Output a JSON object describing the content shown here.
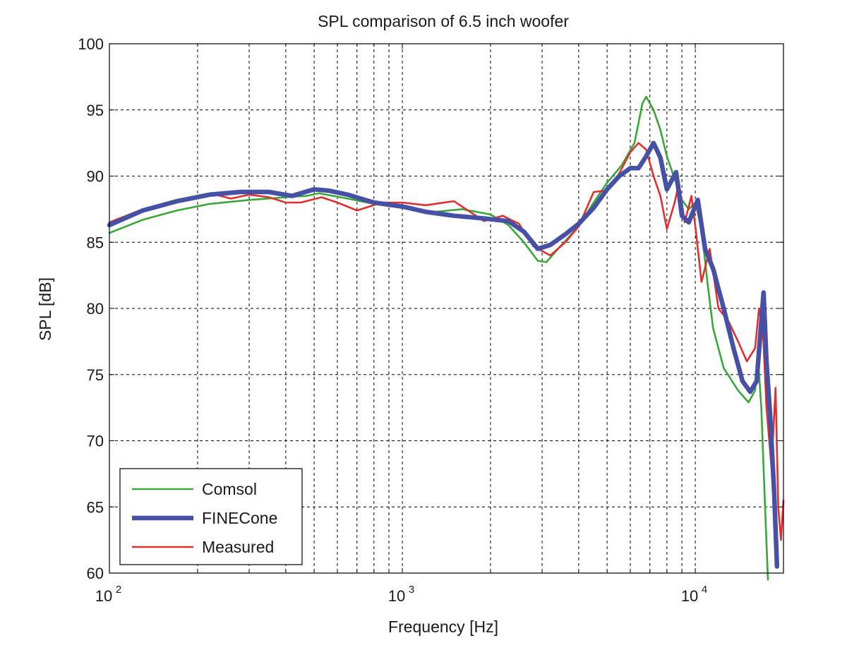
{
  "chart_data": {
    "type": "line",
    "title": "SPL comparison of 6.5 inch woofer",
    "xlabel": "Frequency [Hz]",
    "ylabel": "SPL [dB]",
    "xscale": "log",
    "xlim": [
      100,
      20000
    ],
    "ylim": [
      60,
      100
    ],
    "grid": true,
    "legend_position": "bottom-left",
    "x_ticks": [
      {
        "value": 100,
        "base": "10",
        "exp": "2"
      },
      {
        "value": 1000,
        "base": "10",
        "exp": "3"
      },
      {
        "value": 10000,
        "base": "10",
        "exp": "4"
      }
    ],
    "y_ticks": [
      60,
      65,
      70,
      75,
      80,
      85,
      90,
      95,
      100
    ],
    "series": [
      {
        "name": "Comsol",
        "color": "#3aa63a",
        "width": "thin",
        "points": [
          [
            100,
            85.7
          ],
          [
            130,
            86.7
          ],
          [
            170,
            87.4
          ],
          [
            220,
            87.9
          ],
          [
            300,
            88.2
          ],
          [
            400,
            88.4
          ],
          [
            470,
            88.5
          ],
          [
            520,
            88.7
          ],
          [
            650,
            88.3
          ],
          [
            800,
            87.9
          ],
          [
            1000,
            87.6
          ],
          [
            1300,
            87.3
          ],
          [
            1600,
            87.5
          ],
          [
            2000,
            87.1
          ],
          [
            2300,
            86.3
          ],
          [
            2600,
            85.0
          ],
          [
            2900,
            83.6
          ],
          [
            3100,
            83.5
          ],
          [
            3400,
            84.5
          ],
          [
            4000,
            86.2
          ],
          [
            4500,
            88.0
          ],
          [
            5000,
            89.5
          ],
          [
            5600,
            90.8
          ],
          [
            6200,
            92.5
          ],
          [
            6600,
            95.5
          ],
          [
            6800,
            96.0
          ],
          [
            7200,
            95.0
          ],
          [
            7600,
            93.5
          ],
          [
            8000,
            91.5
          ],
          [
            8500,
            89.8
          ],
          [
            9000,
            88.2
          ],
          [
            9500,
            87.5
          ],
          [
            10000,
            88.0
          ],
          [
            10500,
            86.0
          ],
          [
            11000,
            82.0
          ],
          [
            11500,
            78.5
          ],
          [
            12500,
            75.5
          ],
          [
            14000,
            73.8
          ],
          [
            15200,
            72.9
          ],
          [
            16000,
            73.8
          ],
          [
            16400,
            76.0
          ],
          [
            16800,
            72.5
          ],
          [
            17300,
            65.0
          ],
          [
            17700,
            59.5
          ]
        ]
      },
      {
        "name": "FINECone",
        "color": "#4650a4",
        "width": "thick",
        "points": [
          [
            100,
            86.3
          ],
          [
            130,
            87.4
          ],
          [
            170,
            88.1
          ],
          [
            220,
            88.6
          ],
          [
            280,
            88.8
          ],
          [
            350,
            88.8
          ],
          [
            420,
            88.5
          ],
          [
            450,
            88.7
          ],
          [
            500,
            89.0
          ],
          [
            560,
            88.9
          ],
          [
            650,
            88.6
          ],
          [
            800,
            88.0
          ],
          [
            1000,
            87.7
          ],
          [
            1200,
            87.3
          ],
          [
            1500,
            87.0
          ],
          [
            1900,
            86.8
          ],
          [
            2300,
            86.6
          ],
          [
            2600,
            85.8
          ],
          [
            2900,
            84.5
          ],
          [
            3200,
            84.8
          ],
          [
            3600,
            85.6
          ],
          [
            4000,
            86.4
          ],
          [
            4500,
            87.6
          ],
          [
            5000,
            89.0
          ],
          [
            5500,
            90.0
          ],
          [
            6000,
            90.6
          ],
          [
            6400,
            90.6
          ],
          [
            6800,
            91.5
          ],
          [
            7200,
            92.5
          ],
          [
            7600,
            91.4
          ],
          [
            8000,
            89.0
          ],
          [
            8600,
            90.3
          ],
          [
            9000,
            87.0
          ],
          [
            9500,
            86.5
          ],
          [
            10200,
            88.2
          ],
          [
            10800,
            84.5
          ],
          [
            11500,
            83.0
          ],
          [
            12500,
            80.0
          ],
          [
            13500,
            77.0
          ],
          [
            14500,
            74.5
          ],
          [
            15400,
            73.7
          ],
          [
            16200,
            74.5
          ],
          [
            16800,
            79.0
          ],
          [
            17100,
            81.2
          ],
          [
            17500,
            76.0
          ],
          [
            18000,
            72.0
          ],
          [
            18600,
            66.0
          ],
          [
            19000,
            60.5
          ]
        ]
      },
      {
        "name": "Measured",
        "color": "#e0302e",
        "width": "thin",
        "points": [
          [
            100,
            86.5
          ],
          [
            130,
            87.5
          ],
          [
            180,
            88.3
          ],
          [
            230,
            88.6
          ],
          [
            260,
            88.3
          ],
          [
            300,
            88.6
          ],
          [
            350,
            88.4
          ],
          [
            400,
            88.0
          ],
          [
            450,
            88.0
          ],
          [
            530,
            88.4
          ],
          [
            600,
            88.0
          ],
          [
            700,
            87.4
          ],
          [
            850,
            88.0
          ],
          [
            1000,
            88.0
          ],
          [
            1200,
            87.8
          ],
          [
            1500,
            88.1
          ],
          [
            1900,
            86.6
          ],
          [
            2200,
            87.0
          ],
          [
            2500,
            86.4
          ],
          [
            2800,
            84.7
          ],
          [
            3200,
            84.0
          ],
          [
            3600,
            85.0
          ],
          [
            4000,
            86.2
          ],
          [
            4500,
            88.8
          ],
          [
            5000,
            88.9
          ],
          [
            5500,
            90.2
          ],
          [
            6000,
            91.8
          ],
          [
            6400,
            92.5
          ],
          [
            6800,
            92.0
          ],
          [
            7200,
            90.0
          ],
          [
            7600,
            88.5
          ],
          [
            8000,
            86.0
          ],
          [
            8500,
            88.0
          ],
          [
            8800,
            89.5
          ],
          [
            9200,
            86.5
          ],
          [
            9700,
            88.5
          ],
          [
            10000,
            86.2
          ],
          [
            10500,
            82.0
          ],
          [
            11200,
            84.5
          ],
          [
            12000,
            80.0
          ],
          [
            13000,
            79.0
          ],
          [
            14000,
            77.5
          ],
          [
            15000,
            76.0
          ],
          [
            16000,
            77.0
          ],
          [
            16500,
            80.0
          ],
          [
            17000,
            78.5
          ],
          [
            17500,
            72.5
          ],
          [
            18200,
            68.0
          ],
          [
            18800,
            74.0
          ],
          [
            19200,
            65.0
          ],
          [
            19600,
            62.5
          ],
          [
            20000,
            65.5
          ]
        ]
      }
    ]
  }
}
